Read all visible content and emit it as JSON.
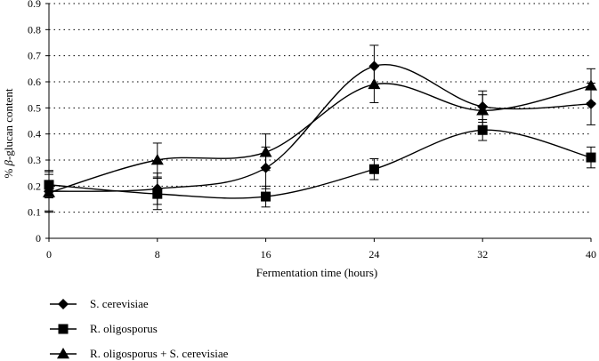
{
  "chart_data": {
    "type": "line",
    "title": "",
    "xlabel": "Fermentation time (hours)",
    "ylabel_prefix": "% ",
    "ylabel_symbol": "β",
    "ylabel_suffix": "-glucan content",
    "x": [
      0,
      8,
      16,
      24,
      32,
      40
    ],
    "xticks": [
      "0",
      "8",
      "16",
      "24",
      "32",
      "40"
    ],
    "yticks": [
      "0",
      "0.1",
      "0.2",
      "0.3",
      "0.4",
      "0.5",
      "0.6",
      "0.7",
      "0.8",
      "0.9"
    ],
    "xlim": [
      0,
      40
    ],
    "ylim": [
      0,
      0.9
    ],
    "grid": "horizontal dotted",
    "legend_position": "bottom-left",
    "series": [
      {
        "name": "S. cerevisiae",
        "marker": "diamond",
        "values": [
          0.18,
          0.19,
          0.27,
          0.66,
          0.505,
          0.515
        ],
        "errors": [
          0.08,
          0.06,
          0.08,
          0.08,
          0.06,
          0.08
        ]
      },
      {
        "name": "R. oligosporus",
        "marker": "square",
        "values": [
          0.205,
          0.17,
          0.16,
          0.265,
          0.415,
          0.31
        ],
        "errors": [
          0.05,
          0.06,
          0.04,
          0.04,
          0.04,
          0.04
        ]
      },
      {
        "name": "R. oligosporus + S. cerevisiae",
        "marker": "triangle",
        "values": [
          0.175,
          0.3,
          0.33,
          0.59,
          0.49,
          0.585
        ],
        "errors": [
          0.07,
          0.065,
          0.07,
          0.07,
          0.06,
          0.065
        ]
      }
    ]
  }
}
